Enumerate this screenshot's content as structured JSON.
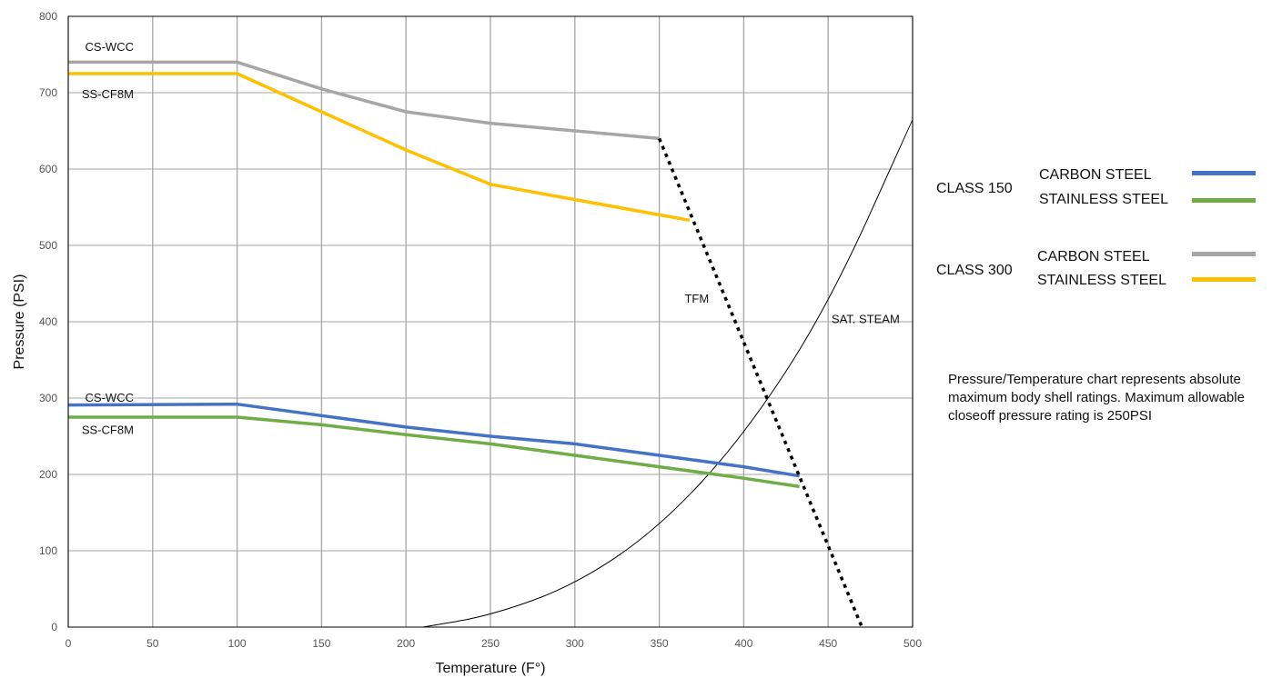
{
  "chart_data": {
    "type": "line",
    "xlabel": "Temperature (F°)",
    "ylabel": "Pressure (PSI)",
    "xlim": [
      0,
      500
    ],
    "ylim": [
      0,
      800
    ],
    "x_ticks": [
      "0",
      "50",
      "100",
      "150",
      "200",
      "250",
      "300",
      "350",
      "400",
      "450",
      "500"
    ],
    "y_ticks": [
      "0",
      "100",
      "200",
      "300",
      "400",
      "500",
      "600",
      "700",
      "800"
    ],
    "grid": true,
    "series": [
      {
        "key": "c150_cs",
        "color": "#4472C4",
        "points": [
          [
            0,
            291
          ],
          [
            100,
            292
          ],
          [
            150,
            277
          ],
          [
            200,
            262
          ],
          [
            250,
            250
          ],
          [
            300,
            240
          ],
          [
            350,
            225
          ],
          [
            400,
            210
          ],
          [
            433,
            198
          ]
        ]
      },
      {
        "key": "c150_ss",
        "color": "#70AD47",
        "points": [
          [
            0,
            275
          ],
          [
            100,
            275
          ],
          [
            150,
            265
          ],
          [
            200,
            252
          ],
          [
            250,
            240
          ],
          [
            300,
            225
          ],
          [
            350,
            210
          ],
          [
            400,
            195
          ],
          [
            433,
            184
          ]
        ]
      },
      {
        "key": "c300_cs",
        "color": "#A6A6A6",
        "points": [
          [
            0,
            740
          ],
          [
            100,
            740
          ],
          [
            150,
            705
          ],
          [
            200,
            675
          ],
          [
            250,
            660
          ],
          [
            300,
            650
          ],
          [
            350,
            640
          ]
        ]
      },
      {
        "key": "c300_ss",
        "color": "#FFC000",
        "points": [
          [
            0,
            725
          ],
          [
            100,
            725
          ],
          [
            150,
            675
          ],
          [
            200,
            625
          ],
          [
            250,
            580
          ],
          [
            300,
            560
          ],
          [
            350,
            540
          ],
          [
            368,
            533
          ]
        ]
      }
    ],
    "tfm_line": {
      "color": "#000000",
      "points": [
        [
          350,
          640
        ],
        [
          470,
          0
        ]
      ]
    },
    "sat_steam_curve": {
      "color": "#000000",
      "points": [
        [
          210,
          0
        ],
        [
          250,
          15
        ],
        [
          300,
          55
        ],
        [
          350,
          130
        ],
        [
          400,
          250
        ],
        [
          450,
          420
        ],
        [
          500,
          665
        ]
      ]
    },
    "annotations": [
      {
        "text": "CS-WCC",
        "x": 10,
        "y": 755
      },
      {
        "text": "SS-CF8M",
        "x": 8,
        "y": 693
      },
      {
        "text": "CS-WCC",
        "x": 10,
        "y": 295
      },
      {
        "text": "SS-CF8M",
        "x": 8,
        "y": 253
      },
      {
        "text": "TFM",
        "x": 365,
        "y": 425
      },
      {
        "text": "SAT. STEAM",
        "x": 452,
        "y": 398
      }
    ]
  },
  "legend": {
    "class150": {
      "label": "CLASS 150",
      "cs_label": "CARBON STEEL",
      "ss_label": "STAINLESS STEEL",
      "cs_color": "#4472C4",
      "ss_color": "#70AD47"
    },
    "class300": {
      "label": "CLASS 300",
      "cs_label": "CARBON STEEL",
      "ss_label": "STAINLESS STEEL",
      "cs_color": "#A6A6A6",
      "ss_color": "#FFC000"
    }
  },
  "note": "Pressure/Temperature chart represents absolute maximum body shell ratings.  Maximum allowable closeoff pressure rating is 250PSI"
}
